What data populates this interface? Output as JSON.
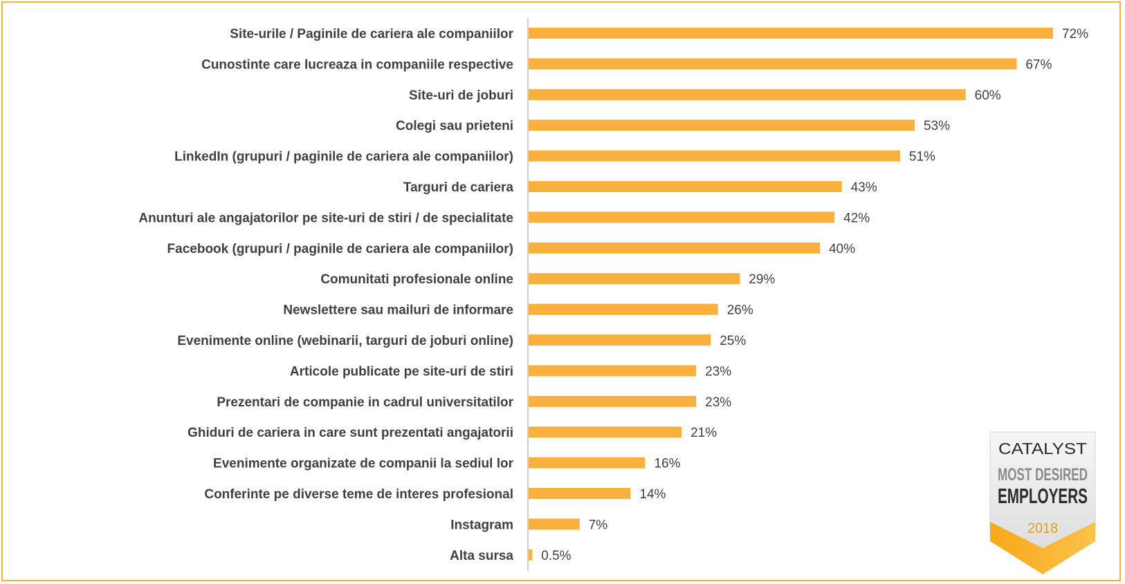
{
  "chart_data": {
    "type": "bar",
    "orientation": "horizontal",
    "categories": [
      "Site-urile / Paginile de cariera ale companiilor",
      "Cunostinte care lucreaza in companiile respective",
      "Site-uri de joburi",
      "Colegi sau prieteni",
      "LinkedIn (grupuri / paginile de cariera ale companiilor)",
      "Targuri de cariera",
      "Anunturi ale angajatorilor pe site-uri de stiri / de specialitate",
      "Facebook (grupuri / paginile de cariera ale companiilor)",
      "Comunitati profesionale online",
      "Newslettere sau mailuri de informare",
      "Evenimente online (webinarii, targuri de joburi online)",
      "Articole publicate pe site-uri de stiri",
      "Prezentari de companie in cadrul universitatilor",
      "Ghiduri de cariera in care sunt prezentati angajatorii",
      "Evenimente organizate de companii la sediul lor",
      "Conferinte pe diverse teme de interes profesional",
      "Instagram",
      "Alta sursa"
    ],
    "values": [
      72,
      67,
      60,
      53,
      51,
      43,
      42,
      40,
      29,
      26,
      25,
      23,
      23,
      21,
      16,
      14,
      7,
      0.5
    ],
    "value_labels": [
      "72%",
      "67%",
      "60%",
      "53%",
      "51%",
      "43%",
      "42%",
      "40%",
      "29%",
      "26%",
      "25%",
      "23%",
      "23%",
      "21%",
      "16%",
      "14%",
      "7%",
      "0.5%"
    ],
    "xlim": [
      0,
      100
    ],
    "grid": false,
    "legend": "none",
    "bar_color": "#f9b03d"
  },
  "colors": {
    "frame": "#f5b335",
    "axis": "#bfbfbf",
    "text": "#404040"
  },
  "badge": {
    "brand": "CATALYST",
    "line1": "MOST DESIRED",
    "line2": "EMPLOYERS",
    "year": "2018"
  }
}
